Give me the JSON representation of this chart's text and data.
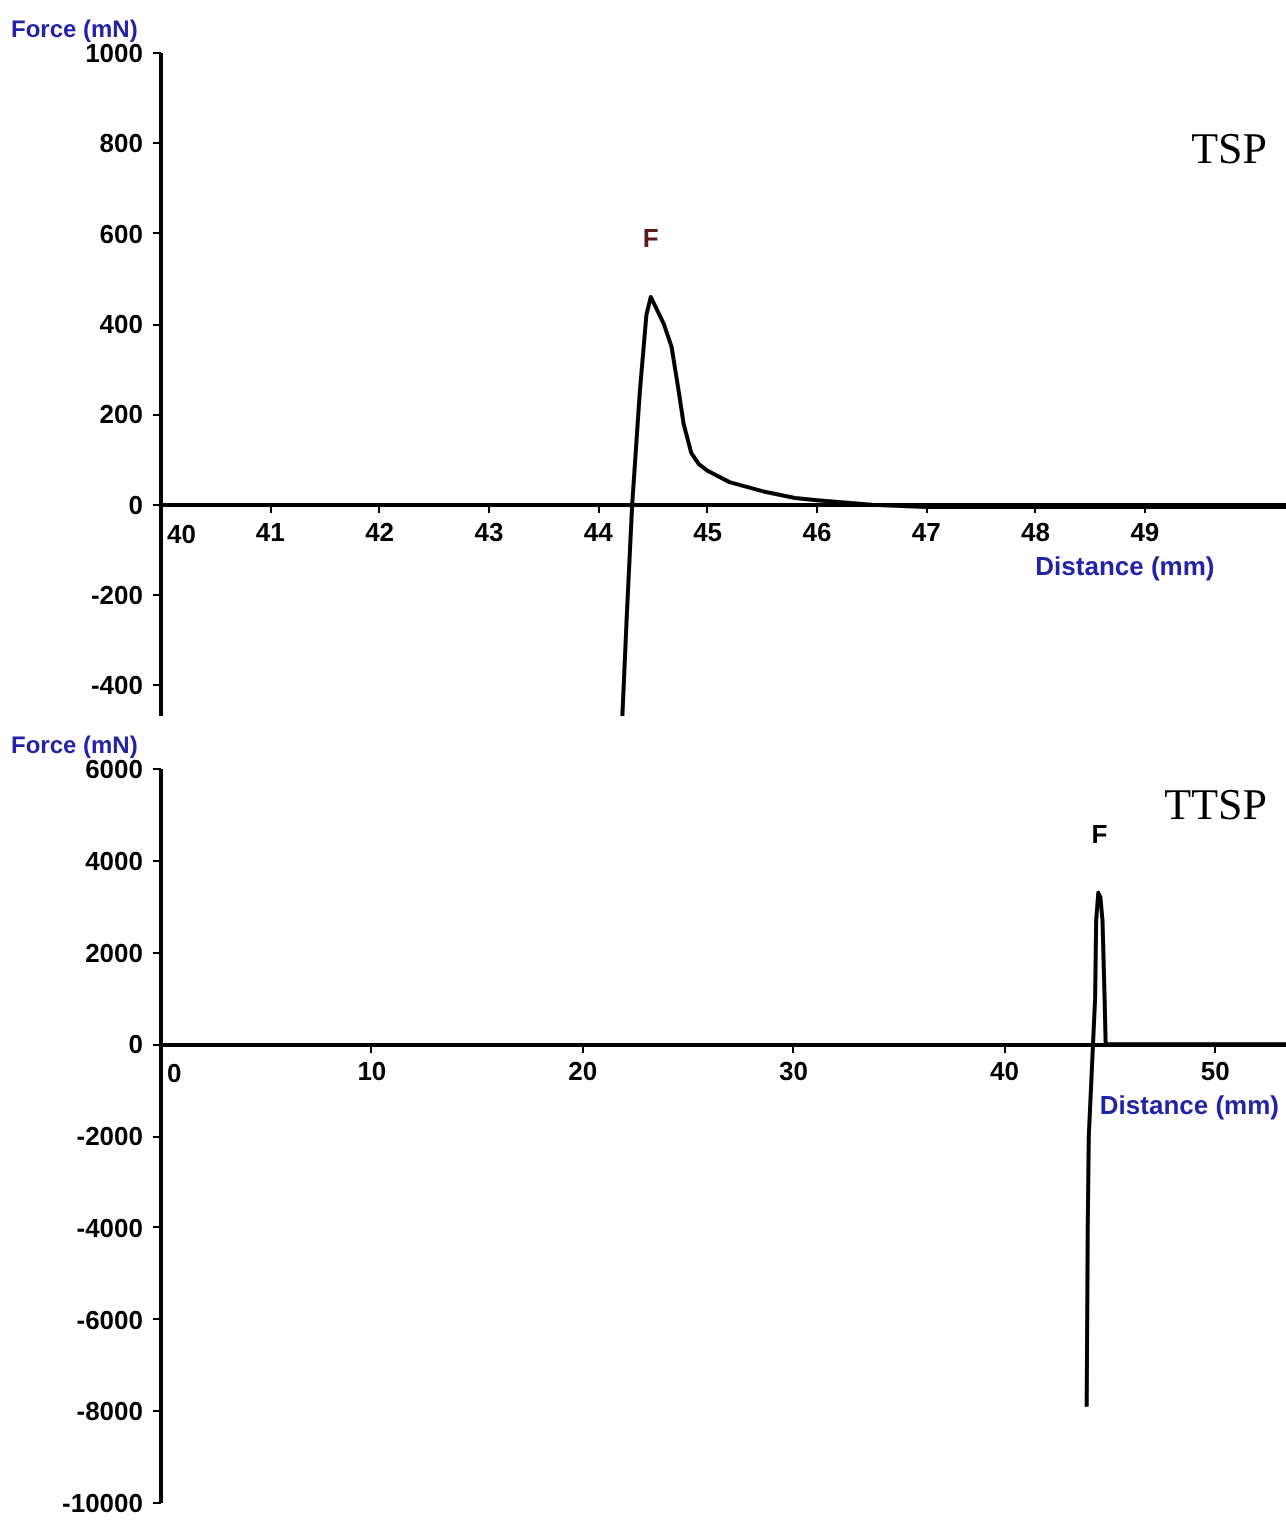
{
  "chart_data": [
    {
      "type": "line",
      "title": "TSP",
      "xlabel": "Distance (mm)",
      "ylabel": "Force (mN)",
      "xlim": [
        40,
        50.3
      ],
      "ylim": [
        -470,
        1000
      ],
      "xticks": [
        40,
        41,
        42,
        43,
        44,
        45,
        46,
        47,
        48,
        49
      ],
      "yticks": [
        -400,
        -200,
        0,
        200,
        400,
        600,
        800,
        1000
      ],
      "grid": false,
      "marker": "none",
      "line_style": "solid",
      "annotations": [
        {
          "text": "F",
          "x": 44.48,
          "y": 460
        }
      ],
      "series": [
        {
          "color": "#000000",
          "x": [
            44.22,
            44.26,
            44.31,
            44.38,
            44.44,
            44.48,
            44.52,
            44.6,
            44.67,
            44.73,
            44.78,
            44.85,
            44.92,
            45.0,
            45.2,
            45.5,
            45.8,
            46.0,
            46.5,
            47.0,
            47.5,
            48.0,
            48.5,
            49.0,
            49.5,
            50.3
          ],
          "values": [
            -470,
            -250,
            0,
            250,
            420,
            460,
            440,
            400,
            350,
            260,
            180,
            115,
            90,
            75,
            50,
            30,
            15,
            10,
            0,
            -5,
            -5,
            -5,
            -5,
            -5,
            -5,
            -5
          ]
        }
      ]
    },
    {
      "type": "line",
      "title": "TTSP",
      "xlabel": "Distance (mm)",
      "ylabel": "Force (mN)",
      "xlim": [
        0,
        53.4
      ],
      "ylim": [
        -10000,
        6000
      ],
      "xticks": [
        0,
        10,
        20,
        30,
        40,
        50
      ],
      "yticks": [
        -10000,
        -8000,
        -6000,
        -4000,
        -2000,
        0,
        2000,
        4000,
        6000
      ],
      "grid": false,
      "marker": "none",
      "line_style": "solid",
      "annotations": [
        {
          "text": "F",
          "x": 44.5,
          "y": 3300
        }
      ],
      "series": [
        {
          "color": "#000000",
          "x": [
            43.9,
            43.95,
            44.0,
            44.1,
            44.2,
            44.3,
            44.35,
            44.45,
            44.55,
            44.65,
            44.75,
            44.8,
            53.4
          ],
          "values": [
            -7900,
            -4000,
            -2000,
            -1000,
            0,
            1000,
            2700,
            3300,
            3200,
            2700,
            1000,
            0,
            0
          ]
        }
      ]
    }
  ]
}
